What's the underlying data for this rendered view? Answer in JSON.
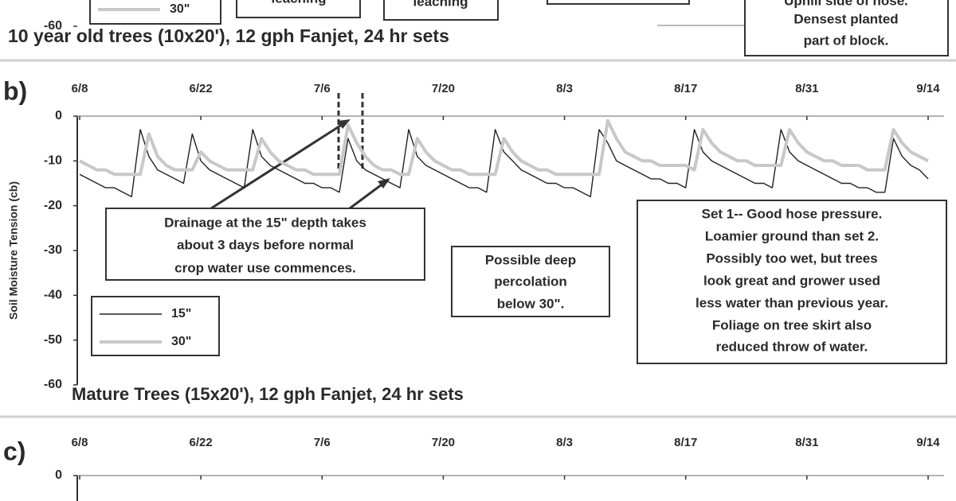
{
  "chart_data": [
    {
      "type": "line",
      "title": "10 year old trees (10x20'), 12 gph Fanjet, 24 hr sets",
      "ylim": [
        -60,
        0
      ],
      "yticks": [
        -60
      ],
      "series": [
        {
          "name": "30\"",
          "color": "#c8c8c8"
        }
      ],
      "annotations": [
        [
          "leaching"
        ],
        [
          "leaching"
        ],
        [
          "Uphill side of hose.",
          "Densest planted",
          "part of block."
        ]
      ]
    },
    {
      "type": "line",
      "panel_label": "b)",
      "title": "Mature Trees (15x20'), 12 gph Fanjet, 24 hr sets",
      "y_label": "Soil Moisture Tension (cb)",
      "ylim": [
        -60,
        0
      ],
      "yticks": [
        0,
        -10,
        -20,
        -30,
        -40,
        -50,
        -60
      ],
      "categories": [
        "6/8",
        null,
        null,
        null,
        null,
        null,
        null,
        null,
        null,
        null,
        null,
        null,
        null,
        null,
        "6/22",
        null,
        null,
        null,
        null,
        null,
        null,
        null,
        null,
        null,
        null,
        null,
        null,
        null,
        "7/6",
        null,
        null,
        null,
        null,
        null,
        null,
        null,
        null,
        null,
        null,
        null,
        null,
        null,
        "7/20",
        null,
        null,
        null,
        null,
        null,
        null,
        null,
        null,
        null,
        null,
        null,
        null,
        null,
        "8/3",
        null,
        null,
        null,
        null,
        null,
        null,
        null,
        null,
        null,
        null,
        null,
        null,
        null,
        "8/17",
        null,
        null,
        null,
        null,
        null,
        null,
        null,
        null,
        null,
        null,
        null,
        null,
        null,
        "8/31",
        null,
        null,
        null,
        null,
        null,
        null,
        null,
        null,
        null,
        null,
        null,
        null,
        null,
        "9/14"
      ],
      "series": [
        {
          "name": "15\"",
          "color": "#222222",
          "values": [
            -13,
            -14,
            -15,
            -16,
            -16,
            -17,
            -18,
            -3,
            -9,
            -12,
            -13,
            -14,
            -15,
            -4,
            -10,
            -12,
            -13,
            -14,
            -15,
            -16,
            -3,
            -9,
            -11,
            -12,
            -13,
            -14,
            -15,
            -15,
            -16,
            -16,
            -17,
            -5,
            -10,
            -12,
            -13,
            -14,
            -15,
            -16,
            -3,
            -9,
            -11,
            -12,
            -13,
            -14,
            -15,
            -16,
            -16,
            -17,
            -3,
            -8,
            -10,
            -12,
            -13,
            -14,
            -15,
            -15,
            -16,
            -16,
            -17,
            -18,
            -3,
            -6,
            -10,
            -11,
            -12,
            -13,
            -14,
            -14,
            -15,
            -15,
            -16,
            -3,
            -8,
            -10,
            -11,
            -12,
            -13,
            -14,
            -15,
            -15,
            -16,
            -3,
            -8,
            -10,
            -11,
            -12,
            -13,
            -14,
            -15,
            -15,
            -16,
            -16,
            -17,
            -17,
            -5,
            -9,
            -11,
            -12,
            -14
          ]
        },
        {
          "name": "30\"",
          "color": "#c8c8c8",
          "values": [
            -10,
            -11,
            -12,
            -12,
            -13,
            -13,
            -13,
            -13,
            -4,
            -9,
            -11,
            -12,
            -12,
            -12,
            -8,
            -10,
            -11,
            -12,
            -12,
            -12,
            -12,
            -5,
            -8,
            -10,
            -11,
            -12,
            -12,
            -13,
            -13,
            -13,
            -13,
            -2,
            -6,
            -9,
            -11,
            -12,
            -12,
            -13,
            -13,
            -5,
            -8,
            -10,
            -11,
            -12,
            -12,
            -13,
            -13,
            -13,
            -13,
            -5,
            -8,
            -10,
            -11,
            -12,
            -12,
            -13,
            -13,
            -13,
            -13,
            -13,
            -13,
            -1,
            -5,
            -8,
            -9,
            -10,
            -10,
            -11,
            -11,
            -11,
            -11,
            -12,
            -3,
            -6,
            -8,
            -9,
            -10,
            -10,
            -11,
            -11,
            -11,
            -11,
            -3,
            -6,
            -8,
            -9,
            -10,
            -10,
            -11,
            -11,
            -11,
            -12,
            -12,
            -12,
            -3,
            -6,
            -8,
            -9,
            -10
          ]
        }
      ],
      "annotations": [
        [
          "Drainage at the 15\" depth takes",
          "about 3 days before normal",
          "crop water use commences."
        ],
        [
          "Possible deep",
          "percolation",
          "below 30\"."
        ],
        [
          "Set 1-- Good hose pressure.",
          "Loamier ground than set 2.",
          "Possibly too wet, but trees",
          "look great and grower used",
          "less water than previous year.",
          "Foliage on tree skirt also",
          "reduced throw of water."
        ]
      ]
    },
    {
      "type": "line",
      "panel_label": "c)",
      "ylim": [
        -60,
        0
      ],
      "yticks": [
        0
      ],
      "categories": [
        "6/8",
        null,
        null,
        null,
        null,
        null,
        null,
        null,
        null,
        null,
        null,
        null,
        null,
        null,
        "6/22",
        null,
        null,
        null,
        null,
        null,
        null,
        null,
        null,
        null,
        null,
        null,
        null,
        null,
        "7/6",
        null,
        null,
        null,
        null,
        null,
        null,
        null,
        null,
        null,
        null,
        null,
        null,
        null,
        "7/20",
        null,
        null,
        null,
        null,
        null,
        null,
        null,
        null,
        null,
        null,
        null,
        null,
        null,
        "8/3",
        null,
        null,
        null,
        null,
        null,
        null,
        null,
        null,
        null,
        null,
        null,
        null,
        null,
        "8/17",
        null,
        null,
        null,
        null,
        null,
        null,
        null,
        null,
        null,
        null,
        null,
        null,
        null,
        "8/31",
        null,
        null,
        null,
        null,
        null,
        null,
        null,
        null,
        null,
        null,
        null,
        null,
        null,
        "9/14"
      ]
    }
  ]
}
